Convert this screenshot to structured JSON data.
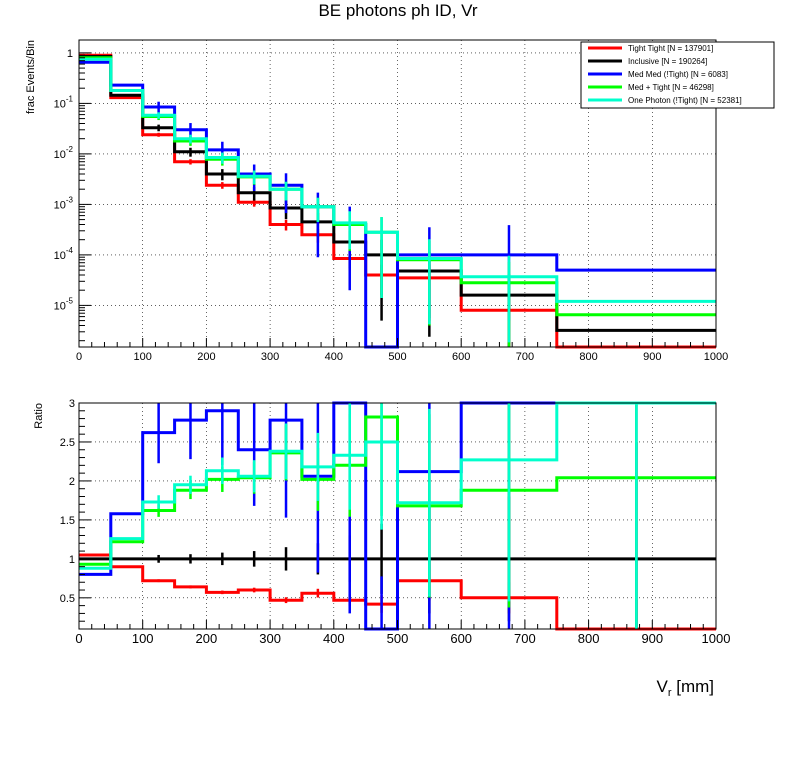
{
  "chart_data": [
    {
      "type": "step",
      "panel": "top",
      "title": "BE photons ph ID, Vr",
      "ylabel": "frac Events/Bin",
      "xlim": [
        0,
        1000
      ],
      "ylim": [
        1.5e-06,
        1.8
      ],
      "yscale": "log",
      "xticks": [
        "0",
        "100",
        "200",
        "300",
        "400",
        "500",
        "600",
        "700",
        "800",
        "900",
        "1000"
      ],
      "yticks": [
        {
          "base": "10",
          "exp": "-5",
          "value": 1e-05
        },
        {
          "base": "10",
          "exp": "-4",
          "value": 0.0001
        },
        {
          "base": "10",
          "exp": "-3",
          "value": 0.001
        },
        {
          "base": "10",
          "exp": "-2",
          "value": 0.01
        },
        {
          "base": "10",
          "exp": "-1",
          "value": 0.1
        },
        {
          "base": "1",
          "exp": "",
          "value": 1
        }
      ],
      "bin_edges": [
        0,
        50,
        100,
        150,
        200,
        250,
        300,
        350,
        400,
        450,
        500,
        600,
        750,
        1000
      ],
      "series": [
        {
          "name": "Tight Tight [N = 137901]",
          "color": "#ff0000",
          "values": [
            0.9,
            0.13,
            0.024,
            0.007,
            0.0024,
            0.0011,
            0.0004,
            0.00025,
            8.5e-05,
            4e-05,
            3.5e-05,
            8e-06,
            1.2e-06,
            1.2e-06
          ]
        },
        {
          "name": "Inclusive [N = 190264]",
          "color": "#000000",
          "values": [
            0.85,
            0.145,
            0.033,
            0.011,
            0.004,
            0.0017,
            0.00085,
            0.00045,
            0.00018,
            0.0001,
            4.8e-05,
            1.6e-05,
            3.2e-06,
            3.2e-06
          ]
        },
        {
          "name": "Med Med (!Tight) [N = 6083]",
          "color": "#0000ff",
          "values": [
            0.65,
            0.23,
            0.085,
            0.03,
            0.012,
            0.004,
            0.0024,
            0.0009,
            0.0004,
            5e-07,
            0.0001,
            0.0001,
            5e-05,
            5e-05
          ]
        },
        {
          "name": "Med + Tight [N = 46298]",
          "color": "#00ff00",
          "values": [
            0.8,
            0.18,
            0.055,
            0.018,
            0.0078,
            0.0035,
            0.002,
            0.0009,
            0.0004,
            0.00028,
            8e-05,
            2.8e-05,
            6.5e-06,
            6.5e-06
          ]
        },
        {
          "name": "One Photon (!Tight) [N = 52381]",
          "color": "#00ffcc",
          "values": [
            0.75,
            0.18,
            0.058,
            0.02,
            0.0085,
            0.0036,
            0.002,
            0.0009,
            0.00043,
            0.00028,
            8.5e-05,
            3.7e-05,
            1.2e-05,
            1.2e-05
          ]
        }
      ],
      "legend_position": "top-right"
    },
    {
      "type": "step",
      "panel": "bottom",
      "ylabel": "Ratio",
      "xlabel_main": "V",
      "xlabel_sub": "r",
      "xlabel_unit": " [mm]",
      "xlim": [
        0,
        1000
      ],
      "ylim": [
        0.1,
        3
      ],
      "yticks": [
        "0.5",
        "1",
        "1.5",
        "2",
        "2.5",
        "3"
      ],
      "xticks": [
        "0",
        "100",
        "200",
        "300",
        "400",
        "500",
        "600",
        "700",
        "800",
        "900",
        "1000"
      ],
      "bin_edges": [
        0,
        50,
        100,
        150,
        200,
        250,
        300,
        350,
        400,
        450,
        500,
        600,
        750,
        1000
      ],
      "series": [
        {
          "name": "Tight Tight",
          "color": "#ff0000",
          "values": [
            1.05,
            0.9,
            0.72,
            0.64,
            0.57,
            0.6,
            0.47,
            0.56,
            0.47,
            0.42,
            0.72,
            0.5,
            0.1,
            0.1
          ]
        },
        {
          "name": "Inclusive",
          "color": "#000000",
          "values": [
            1,
            1,
            1,
            1,
            1,
            1,
            1,
            1,
            1,
            1,
            1,
            1,
            1,
            1
          ]
        },
        {
          "name": "Med Med (!Tight)",
          "color": "#0000ff",
          "values": [
            0.8,
            1.58,
            2.62,
            2.78,
            2.9,
            2.4,
            2.78,
            2.06,
            3,
            0.1,
            2.12,
            3,
            3,
            3
          ]
        },
        {
          "name": "Med + Tight",
          "color": "#00ff00",
          "values": [
            0.93,
            1.22,
            1.62,
            1.88,
            2.02,
            2.04,
            2.36,
            2.02,
            2.2,
            2.82,
            1.68,
            1.88,
            2.04,
            2.04
          ]
        },
        {
          "name": "One Photon (!Tight)",
          "color": "#00ffcc",
          "values": [
            0.88,
            1.26,
            1.73,
            1.95,
            2.13,
            2.06,
            2.38,
            2.18,
            2.33,
            2.5,
            1.72,
            2.27,
            3,
            3
          ]
        }
      ]
    }
  ]
}
